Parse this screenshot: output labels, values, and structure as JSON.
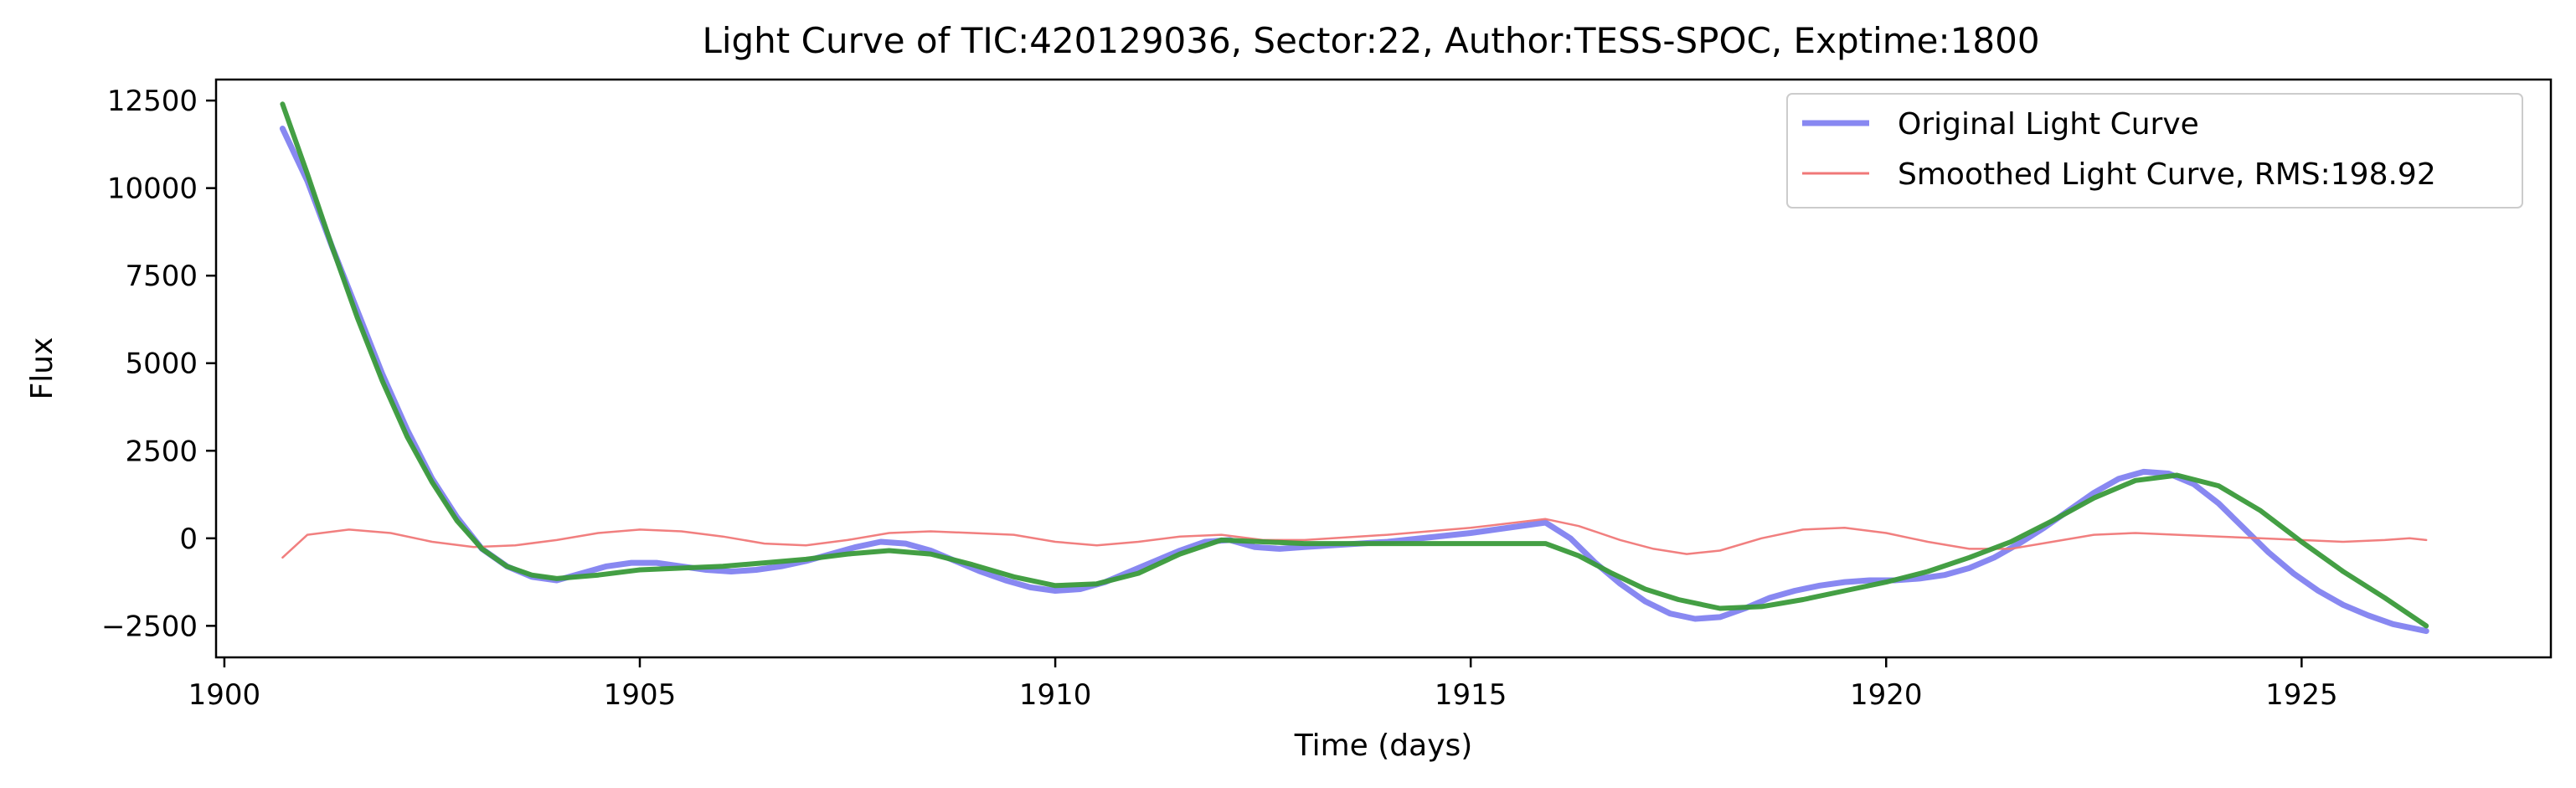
{
  "chart_data": {
    "type": "line",
    "title": "Light Curve of TIC:420129036, Sector:22, Author:TESS-SPOC, Exptime:1800",
    "xlabel": "Time (days)",
    "ylabel": "Flux",
    "xlim": [
      1899.9,
      1928.0
    ],
    "ylim": [
      -3400,
      13100
    ],
    "xticks": [
      1900,
      1905,
      1910,
      1915,
      1920,
      1925
    ],
    "yticks": [
      -2500,
      0,
      2500,
      5000,
      7500,
      10000,
      12500
    ],
    "grid": false,
    "legend_position": "top-right",
    "series": [
      {
        "name": "Original Light Curve",
        "color": "#7b7bf0",
        "x": [
          1900.7,
          1901.0,
          1901.3,
          1901.6,
          1901.9,
          1902.2,
          1902.5,
          1902.8,
          1903.1,
          1903.4,
          1903.7,
          1904.0,
          1904.3,
          1904.6,
          1904.9,
          1905.2,
          1905.5,
          1905.8,
          1906.1,
          1906.4,
          1906.7,
          1907.0,
          1907.3,
          1907.6,
          1907.9,
          1908.2,
          1908.5,
          1908.8,
          1909.1,
          1909.4,
          1909.7,
          1910.0,
          1910.3,
          1910.6,
          1910.9,
          1911.2,
          1911.5,
          1911.8,
          1912.1,
          1912.4,
          1912.7,
          1913.0,
          1914.0,
          1915.0,
          1915.9,
          1916.2,
          1916.5,
          1916.8,
          1917.1,
          1917.4,
          1917.7,
          1918.0,
          1918.3,
          1918.6,
          1918.9,
          1919.2,
          1919.5,
          1919.8,
          1920.1,
          1920.4,
          1920.7,
          1921.0,
          1921.3,
          1921.6,
          1921.9,
          1922.2,
          1922.5,
          1922.8,
          1923.1,
          1923.4,
          1923.7,
          1924.0,
          1924.3,
          1924.6,
          1924.9,
          1925.2,
          1925.5,
          1925.8,
          1926.1,
          1926.5
        ],
        "y": [
          11700,
          10200,
          8300,
          6500,
          4700,
          3100,
          1700,
          600,
          -300,
          -800,
          -1100,
          -1200,
          -1000,
          -800,
          -700,
          -700,
          -800,
          -900,
          -950,
          -900,
          -800,
          -650,
          -450,
          -250,
          -100,
          -150,
          -350,
          -650,
          -950,
          -1200,
          -1400,
          -1500,
          -1450,
          -1250,
          -950,
          -650,
          -350,
          -100,
          -50,
          -250,
          -300,
          -250,
          -100,
          150,
          450,
          0,
          -700,
          -1300,
          -1800,
          -2150,
          -2300,
          -2250,
          -2000,
          -1700,
          -1500,
          -1350,
          -1250,
          -1200,
          -1200,
          -1150,
          -1050,
          -850,
          -550,
          -150,
          300,
          800,
          1300,
          1700,
          1900,
          1850,
          1550,
          1000,
          300,
          -400,
          -1000,
          -1500,
          -1900,
          -2200,
          -2450,
          -2650
        ]
      },
      {
        "name": "Smoothed Light Curve, RMS:198.92",
        "color": "#f07878",
        "x": [
          1900.7,
          1901.0,
          1901.5,
          1902.0,
          1902.5,
          1903.0,
          1903.5,
          1904.0,
          1904.5,
          1905.0,
          1905.5,
          1906.0,
          1906.5,
          1907.0,
          1907.5,
          1908.0,
          1908.5,
          1909.0,
          1909.5,
          1910.0,
          1910.5,
          1911.0,
          1911.5,
          1912.0,
          1912.5,
          1913.0,
          1914.0,
          1915.0,
          1915.9,
          1916.3,
          1916.8,
          1917.2,
          1917.6,
          1918.0,
          1918.5,
          1919.0,
          1919.5,
          1920.0,
          1920.5,
          1921.0,
          1921.5,
          1922.0,
          1922.5,
          1923.0,
          1923.5,
          1924.0,
          1924.5,
          1925.0,
          1925.5,
          1926.0,
          1926.3,
          1926.5
        ],
        "y": [
          -550,
          100,
          250,
          150,
          -100,
          -250,
          -200,
          -50,
          150,
          250,
          200,
          50,
          -150,
          -200,
          -50,
          150,
          200,
          150,
          100,
          -100,
          -200,
          -100,
          50,
          100,
          -50,
          -50,
          100,
          300,
          550,
          350,
          -50,
          -300,
          -450,
          -350,
          0,
          250,
          300,
          150,
          -100,
          -300,
          -300,
          -100,
          100,
          150,
          100,
          50,
          0,
          -50,
          -100,
          -50,
          0,
          -50
        ]
      },
      {
        "name": "",
        "color": "#3a9a3a",
        "x": [
          1900.7,
          1901.0,
          1901.3,
          1901.6,
          1901.9,
          1902.2,
          1902.5,
          1902.8,
          1903.1,
          1903.4,
          1903.7,
          1904.0,
          1904.5,
          1905.0,
          1905.5,
          1906.0,
          1906.5,
          1907.0,
          1907.5,
          1908.0,
          1908.5,
          1909.0,
          1909.5,
          1910.0,
          1910.5,
          1911.0,
          1911.5,
          1912.0,
          1912.5,
          1913.0,
          1914.0,
          1915.0,
          1915.9,
          1916.3,
          1916.7,
          1917.1,
          1917.5,
          1918.0,
          1918.5,
          1919.0,
          1919.5,
          1920.0,
          1920.5,
          1921.0,
          1921.5,
          1922.0,
          1922.5,
          1923.0,
          1923.5,
          1924.0,
          1924.5,
          1925.0,
          1925.5,
          1926.0,
          1926.5
        ],
        "y": [
          12400,
          10400,
          8300,
          6300,
          4500,
          2900,
          1600,
          500,
          -300,
          -800,
          -1050,
          -1150,
          -1050,
          -900,
          -850,
          -800,
          -700,
          -600,
          -450,
          -350,
          -450,
          -750,
          -1100,
          -1350,
          -1300,
          -1000,
          -450,
          -50,
          -100,
          -150,
          -150,
          -150,
          -150,
          -500,
          -1000,
          -1450,
          -1750,
          -2000,
          -1950,
          -1750,
          -1500,
          -1250,
          -950,
          -550,
          -100,
          500,
          1150,
          1650,
          1800,
          1500,
          800,
          -100,
          -950,
          -1700,
          -2500
        ]
      }
    ]
  }
}
